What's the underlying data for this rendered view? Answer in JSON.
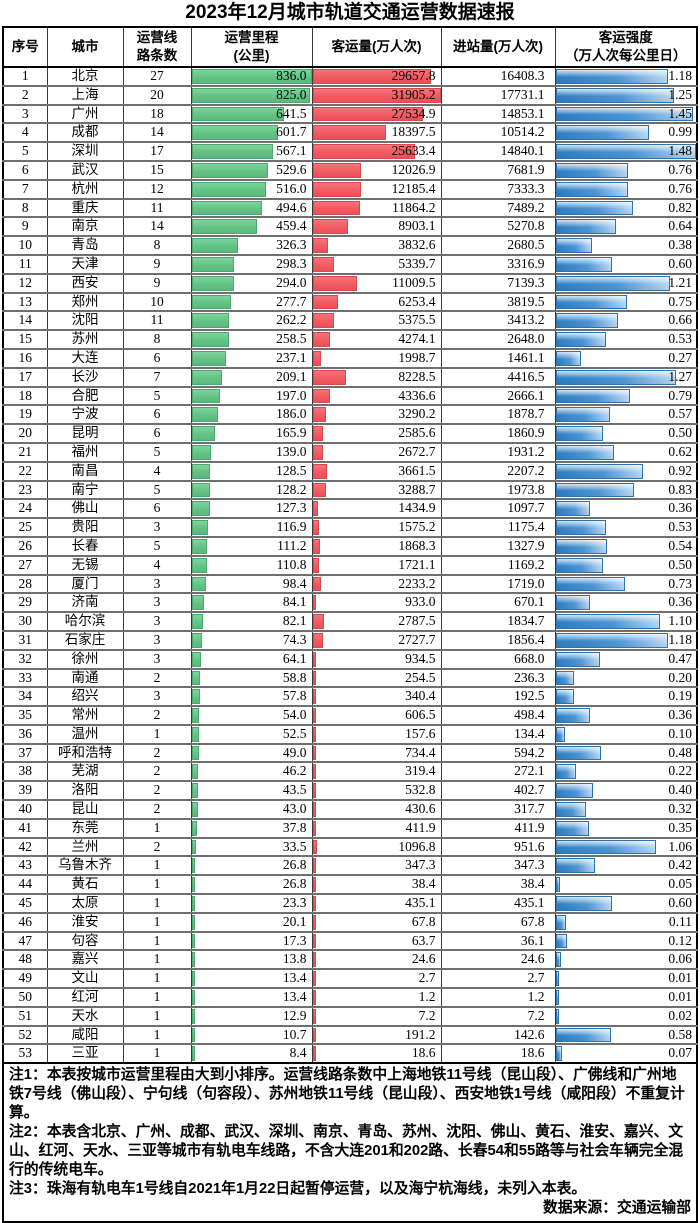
{
  "chart_data": {
    "type": "table",
    "title": "2023年12月城市轨道交通运营数据速报",
    "header": {
      "seq": "序号",
      "city": "城市",
      "lines": [
        "运营线",
        "路条数"
      ],
      "mileage": [
        "运营里程",
        "(公里)"
      ],
      "passengers": "客运量(万人次)",
      "entries": "进站量(万人次)",
      "intensity": [
        "客运强度",
        "（万人次每公里日）"
      ]
    },
    "maxima": {
      "mileage": 836.0,
      "passengers": 31905.2,
      "intensity": 1.48
    },
    "bar_colors": {
      "mileage": "#63C384",
      "passengers": "#F0595F",
      "intensity": "#2E7FC4"
    },
    "rows": [
      {
        "seq": "1",
        "city": "北京",
        "lines": "27",
        "mileage": "836.0",
        "passengers": "29657.8",
        "entries": "16408.3",
        "intensity": "1.18"
      },
      {
        "seq": "2",
        "city": "上海",
        "lines": "20",
        "mileage": "825.0",
        "passengers": "31905.2",
        "entries": "17731.1",
        "intensity": "1.25"
      },
      {
        "seq": "3",
        "city": "广州",
        "lines": "18",
        "mileage": "641.5",
        "passengers": "27534.9",
        "entries": "14853.1",
        "intensity": "1.45"
      },
      {
        "seq": "4",
        "city": "成都",
        "lines": "14",
        "mileage": "601.7",
        "passengers": "18397.5",
        "entries": "10514.2",
        "intensity": "0.99"
      },
      {
        "seq": "5",
        "city": "深圳",
        "lines": "17",
        "mileage": "567.1",
        "passengers": "25633.4",
        "entries": "14840.1",
        "intensity": "1.48"
      },
      {
        "seq": "6",
        "city": "武汉",
        "lines": "15",
        "mileage": "529.6",
        "passengers": "12026.9",
        "entries": "7681.9",
        "intensity": "0.76"
      },
      {
        "seq": "7",
        "city": "杭州",
        "lines": "12",
        "mileage": "516.0",
        "passengers": "12185.4",
        "entries": "7333.3",
        "intensity": "0.76"
      },
      {
        "seq": "8",
        "city": "重庆",
        "lines": "11",
        "mileage": "494.6",
        "passengers": "11864.2",
        "entries": "7489.2",
        "intensity": "0.82"
      },
      {
        "seq": "9",
        "city": "南京",
        "lines": "14",
        "mileage": "459.4",
        "passengers": "8903.1",
        "entries": "5270.8",
        "intensity": "0.64"
      },
      {
        "seq": "10",
        "city": "青岛",
        "lines": "8",
        "mileage": "326.3",
        "passengers": "3832.6",
        "entries": "2680.5",
        "intensity": "0.38"
      },
      {
        "seq": "11",
        "city": "天津",
        "lines": "9",
        "mileage": "298.3",
        "passengers": "5339.7",
        "entries": "3316.9",
        "intensity": "0.60"
      },
      {
        "seq": "12",
        "city": "西安",
        "lines": "9",
        "mileage": "294.0",
        "passengers": "11009.5",
        "entries": "7139.3",
        "intensity": "1.21"
      },
      {
        "seq": "13",
        "city": "郑州",
        "lines": "10",
        "mileage": "277.7",
        "passengers": "6253.4",
        "entries": "3819.5",
        "intensity": "0.75"
      },
      {
        "seq": "14",
        "city": "沈阳",
        "lines": "11",
        "mileage": "262.2",
        "passengers": "5375.5",
        "entries": "3413.2",
        "intensity": "0.66"
      },
      {
        "seq": "15",
        "city": "苏州",
        "lines": "8",
        "mileage": "258.5",
        "passengers": "4274.1",
        "entries": "2648.0",
        "intensity": "0.53"
      },
      {
        "seq": "16",
        "city": "大连",
        "lines": "6",
        "mileage": "237.1",
        "passengers": "1998.7",
        "entries": "1461.1",
        "intensity": "0.27"
      },
      {
        "seq": "17",
        "city": "长沙",
        "lines": "7",
        "mileage": "209.1",
        "passengers": "8228.5",
        "entries": "4416.5",
        "intensity": "1.27"
      },
      {
        "seq": "18",
        "city": "合肥",
        "lines": "5",
        "mileage": "197.0",
        "passengers": "4336.6",
        "entries": "2666.1",
        "intensity": "0.79"
      },
      {
        "seq": "19",
        "city": "宁波",
        "lines": "6",
        "mileage": "186.0",
        "passengers": "3290.2",
        "entries": "1878.7",
        "intensity": "0.57"
      },
      {
        "seq": "20",
        "city": "昆明",
        "lines": "6",
        "mileage": "165.9",
        "passengers": "2585.6",
        "entries": "1860.9",
        "intensity": "0.50"
      },
      {
        "seq": "21",
        "city": "福州",
        "lines": "5",
        "mileage": "139.0",
        "passengers": "2672.7",
        "entries": "1931.2",
        "intensity": "0.62"
      },
      {
        "seq": "22",
        "city": "南昌",
        "lines": "4",
        "mileage": "128.5",
        "passengers": "3661.5",
        "entries": "2207.2",
        "intensity": "0.92"
      },
      {
        "seq": "23",
        "city": "南宁",
        "lines": "5",
        "mileage": "128.2",
        "passengers": "3288.7",
        "entries": "1973.8",
        "intensity": "0.83"
      },
      {
        "seq": "24",
        "city": "佛山",
        "lines": "6",
        "mileage": "127.3",
        "passengers": "1434.9",
        "entries": "1097.7",
        "intensity": "0.36"
      },
      {
        "seq": "25",
        "city": "贵阳",
        "lines": "3",
        "mileage": "116.9",
        "passengers": "1575.2",
        "entries": "1175.4",
        "intensity": "0.53"
      },
      {
        "seq": "26",
        "city": "长春",
        "lines": "5",
        "mileage": "111.2",
        "passengers": "1868.3",
        "entries": "1327.9",
        "intensity": "0.54"
      },
      {
        "seq": "27",
        "city": "无锡",
        "lines": "4",
        "mileage": "110.8",
        "passengers": "1721.1",
        "entries": "1169.2",
        "intensity": "0.50"
      },
      {
        "seq": "28",
        "city": "厦门",
        "lines": "3",
        "mileage": "98.4",
        "passengers": "2233.2",
        "entries": "1719.0",
        "intensity": "0.73"
      },
      {
        "seq": "29",
        "city": "济南",
        "lines": "3",
        "mileage": "84.1",
        "passengers": "933.0",
        "entries": "670.1",
        "intensity": "0.36"
      },
      {
        "seq": "30",
        "city": "哈尔滨",
        "lines": "3",
        "mileage": "82.1",
        "passengers": "2787.5",
        "entries": "1834.7",
        "intensity": "1.10"
      },
      {
        "seq": "31",
        "city": "石家庄",
        "lines": "3",
        "mileage": "74.3",
        "passengers": "2727.7",
        "entries": "1856.4",
        "intensity": "1.18"
      },
      {
        "seq": "32",
        "city": "徐州",
        "lines": "3",
        "mileage": "64.1",
        "passengers": "934.5",
        "entries": "668.0",
        "intensity": "0.47"
      },
      {
        "seq": "33",
        "city": "南通",
        "lines": "2",
        "mileage": "58.8",
        "passengers": "254.5",
        "entries": "236.3",
        "intensity": "0.20"
      },
      {
        "seq": "34",
        "city": "绍兴",
        "lines": "3",
        "mileage": "57.8",
        "passengers": "340.4",
        "entries": "192.5",
        "intensity": "0.19"
      },
      {
        "seq": "35",
        "city": "常州",
        "lines": "2",
        "mileage": "54.0",
        "passengers": "606.5",
        "entries": "498.4",
        "intensity": "0.36"
      },
      {
        "seq": "36",
        "city": "温州",
        "lines": "1",
        "mileage": "52.5",
        "passengers": "157.6",
        "entries": "134.4",
        "intensity": "0.10"
      },
      {
        "seq": "37",
        "city": "呼和浩特",
        "lines": "2",
        "mileage": "49.0",
        "passengers": "734.4",
        "entries": "594.2",
        "intensity": "0.48"
      },
      {
        "seq": "38",
        "city": "芜湖",
        "lines": "2",
        "mileage": "46.2",
        "passengers": "319.4",
        "entries": "272.1",
        "intensity": "0.22"
      },
      {
        "seq": "39",
        "city": "洛阳",
        "lines": "2",
        "mileage": "43.5",
        "passengers": "532.8",
        "entries": "402.7",
        "intensity": "0.40"
      },
      {
        "seq": "40",
        "city": "昆山",
        "lines": "2",
        "mileage": "43.0",
        "passengers": "430.6",
        "entries": "317.7",
        "intensity": "0.32"
      },
      {
        "seq": "41",
        "city": "东莞",
        "lines": "1",
        "mileage": "37.8",
        "passengers": "411.9",
        "entries": "411.9",
        "intensity": "0.35"
      },
      {
        "seq": "42",
        "city": "兰州",
        "lines": "2",
        "mileage": "33.5",
        "passengers": "1096.8",
        "entries": "951.6",
        "intensity": "1.06"
      },
      {
        "seq": "43",
        "city": "乌鲁木齐",
        "lines": "1",
        "mileage": "26.8",
        "passengers": "347.3",
        "entries": "347.3",
        "intensity": "0.42"
      },
      {
        "seq": "44",
        "city": "黄石",
        "lines": "1",
        "mileage": "26.8",
        "passengers": "38.4",
        "entries": "38.4",
        "intensity": "0.05"
      },
      {
        "seq": "45",
        "city": "太原",
        "lines": "1",
        "mileage": "23.3",
        "passengers": "435.1",
        "entries": "435.1",
        "intensity": "0.60"
      },
      {
        "seq": "46",
        "city": "淮安",
        "lines": "1",
        "mileage": "20.1",
        "passengers": "67.8",
        "entries": "67.8",
        "intensity": "0.11"
      },
      {
        "seq": "47",
        "city": "句容",
        "lines": "1",
        "mileage": "17.3",
        "passengers": "63.7",
        "entries": "36.1",
        "intensity": "0.12"
      },
      {
        "seq": "48",
        "city": "嘉兴",
        "lines": "1",
        "mileage": "13.8",
        "passengers": "24.6",
        "entries": "24.6",
        "intensity": "0.06"
      },
      {
        "seq": "49",
        "city": "文山",
        "lines": "1",
        "mileage": "13.4",
        "passengers": "2.7",
        "entries": "2.7",
        "intensity": "0.01"
      },
      {
        "seq": "50",
        "city": "红河",
        "lines": "1",
        "mileage": "13.4",
        "passengers": "1.2",
        "entries": "1.2",
        "intensity": "0.01"
      },
      {
        "seq": "51",
        "city": "天水",
        "lines": "1",
        "mileage": "12.9",
        "passengers": "7.2",
        "entries": "7.2",
        "intensity": "0.02"
      },
      {
        "seq": "52",
        "city": "咸阳",
        "lines": "1",
        "mileage": "10.7",
        "passengers": "191.2",
        "entries": "142.6",
        "intensity": "0.58"
      },
      {
        "seq": "53",
        "city": "三亚",
        "lines": "1",
        "mileage": "8.4",
        "passengers": "18.6",
        "entries": "18.6",
        "intensity": "0.07"
      }
    ]
  },
  "notes": {
    "note1": "注1：本表按城市运营里程由大到小排序。运营线路条数中上海地铁11号线（昆山段）、广佛线和广州地铁7号线（佛山段）、宁句线（句容段）、苏州地铁11号线（昆山段）、西安地铁1号线（咸阳段）不重复计算。",
    "note2": "注2：本表含北京、广州、成都、武汉、深圳、南京、青岛、苏州、沈阳、佛山、黄石、淮安、嘉兴、文山、红河、天水、三亚等城市有轨电车线路，不含大连201和202路、长春54和55路等与社会车辆完全混行的传统电车。",
    "note3": "注3：珠海有轨电车1号线自2021年1月22日起暂停运营，以及海宁杭海线，未列入本表。",
    "source": "数据来源：交通运输部"
  }
}
